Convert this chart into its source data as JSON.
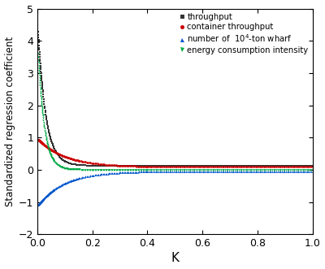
{
  "xlabel": "K",
  "ylabel": "Standardized regression coefficient",
  "xlim": [
    0,
    1.0
  ],
  "ylim": [
    -2,
    5
  ],
  "yticks": [
    -2,
    -1,
    0,
    1,
    2,
    3,
    4,
    5
  ],
  "xticks": [
    0.0,
    0.2,
    0.4,
    0.6,
    0.8,
    1.0
  ],
  "series": [
    {
      "label": "throughput",
      "color": "#333333",
      "marker": "s",
      "c1": 4.6,
      "c2": 35.0,
      "asym": 0.13
    },
    {
      "label": "container throughput",
      "color": "#cc0000",
      "marker": "o",
      "c1": 0.88,
      "c2": 10.0,
      "asym": 0.09
    },
    {
      "label": "number of  $10^4$-ton wharf",
      "color": "#0055cc",
      "marker": "^",
      "c1": -1.08,
      "c2": 10.5,
      "asym": -0.04
    },
    {
      "label": "energy consumption intensity",
      "color": "#00aa44",
      "marker": "v",
      "c1": 4.1,
      "c2": 45.0,
      "asym": 0.01
    }
  ],
  "background_color": "#ffffff",
  "figure_width": 4.0,
  "figure_height": 3.31,
  "dpi": 100
}
